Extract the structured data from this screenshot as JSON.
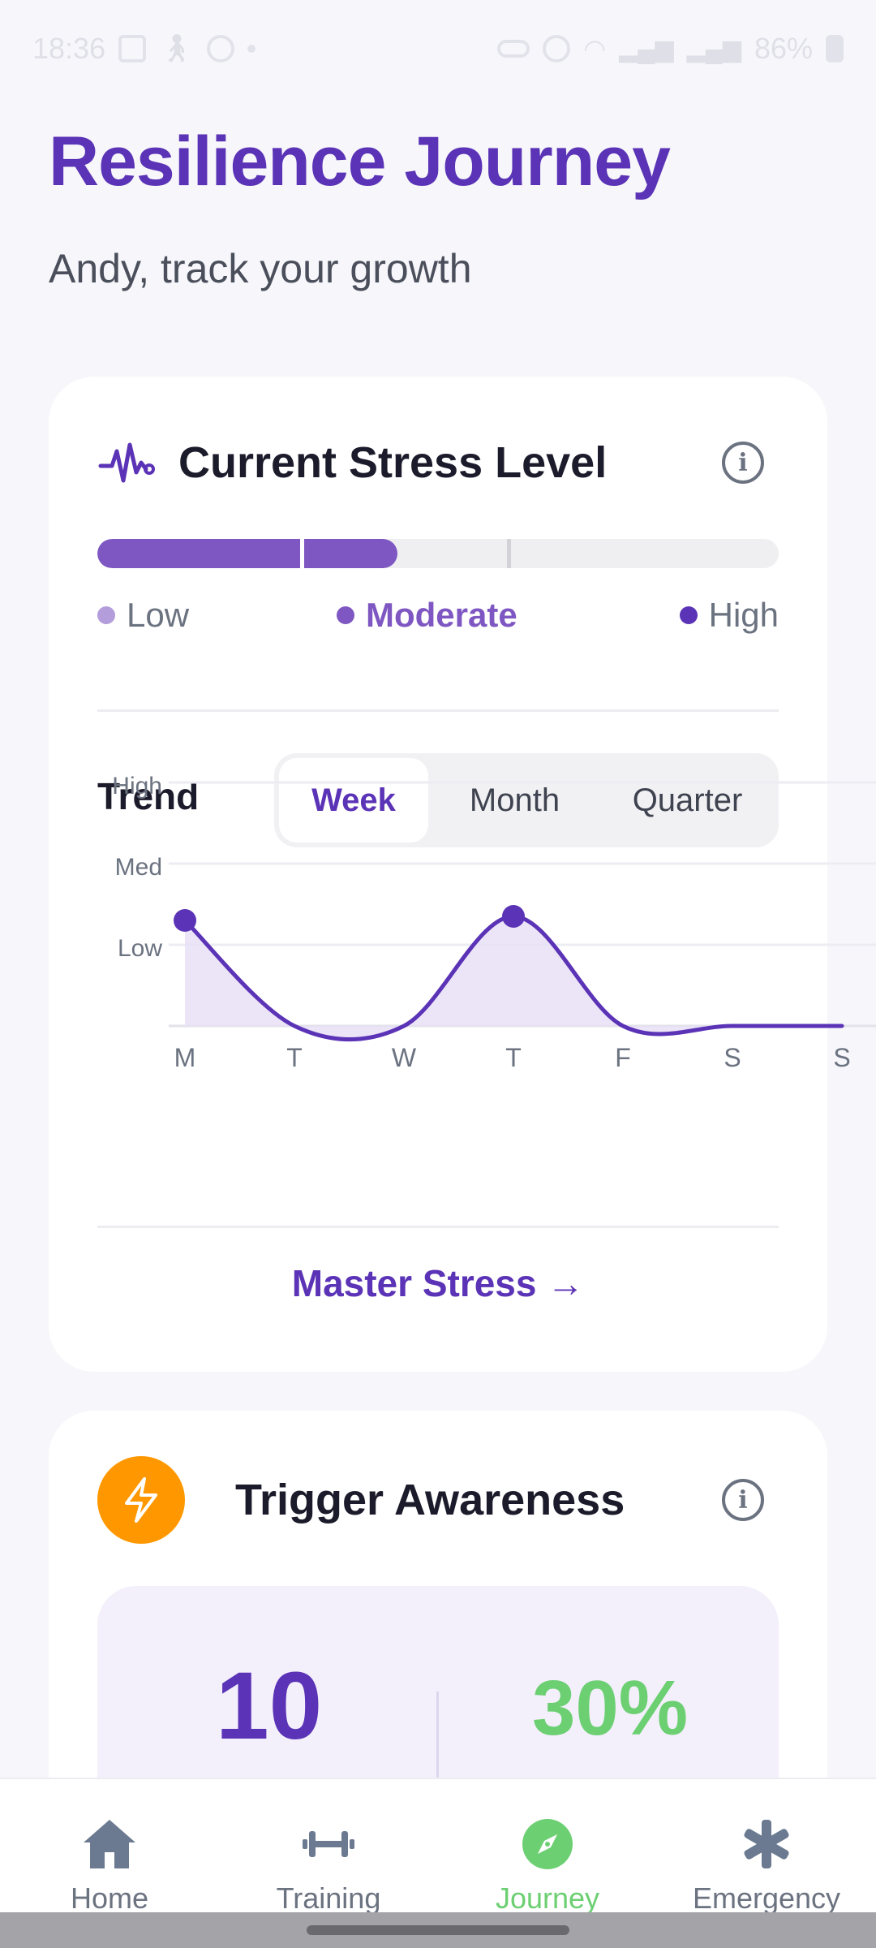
{
  "status_bar": {
    "time": "18:36",
    "battery": "86%"
  },
  "header": {
    "title": "Resilience Journey",
    "subtitle": "Andy, track your growth"
  },
  "stress_card": {
    "title": "Current Stress Level",
    "level_fraction": 0.44,
    "levels": [
      {
        "label": "Low",
        "color": "#b39ddb"
      },
      {
        "label": "Moderate",
        "color": "#7e57c2"
      },
      {
        "label": "High",
        "color": "#5b33b6"
      }
    ],
    "current_level": "Moderate",
    "trend_label": "Trend",
    "tabs": [
      {
        "label": "Week",
        "active": true
      },
      {
        "label": "Month",
        "active": false
      },
      {
        "label": "Quarter",
        "active": false
      }
    ],
    "master_link": "Master Stress →"
  },
  "chart_data": {
    "type": "area",
    "categories": [
      "M",
      "T",
      "W",
      "T",
      "F",
      "S",
      "S"
    ],
    "y_ticks": [
      "Low",
      "Med",
      "High"
    ],
    "ylim": [
      0,
      3
    ],
    "values": [
      1.3,
      0.0,
      0.0,
      1.35,
      0.0,
      0.0,
      0.0
    ],
    "highlighted_points": [
      0,
      3
    ],
    "color": "#5b33b6",
    "fill": "#e9e1f7",
    "grid": true
  },
  "trigger_card": {
    "title": "Trigger Awareness",
    "stat_count": "10",
    "stat_percent": "30%"
  },
  "nav": {
    "items": [
      {
        "label": "Home",
        "icon": "home-icon"
      },
      {
        "label": "Training",
        "icon": "dumbbell-icon"
      },
      {
        "label": "Journey",
        "icon": "compass-icon"
      },
      {
        "label": "Emergency",
        "icon": "asterisk-icon"
      }
    ],
    "active": "Journey",
    "active_color": "#6ccf72"
  }
}
